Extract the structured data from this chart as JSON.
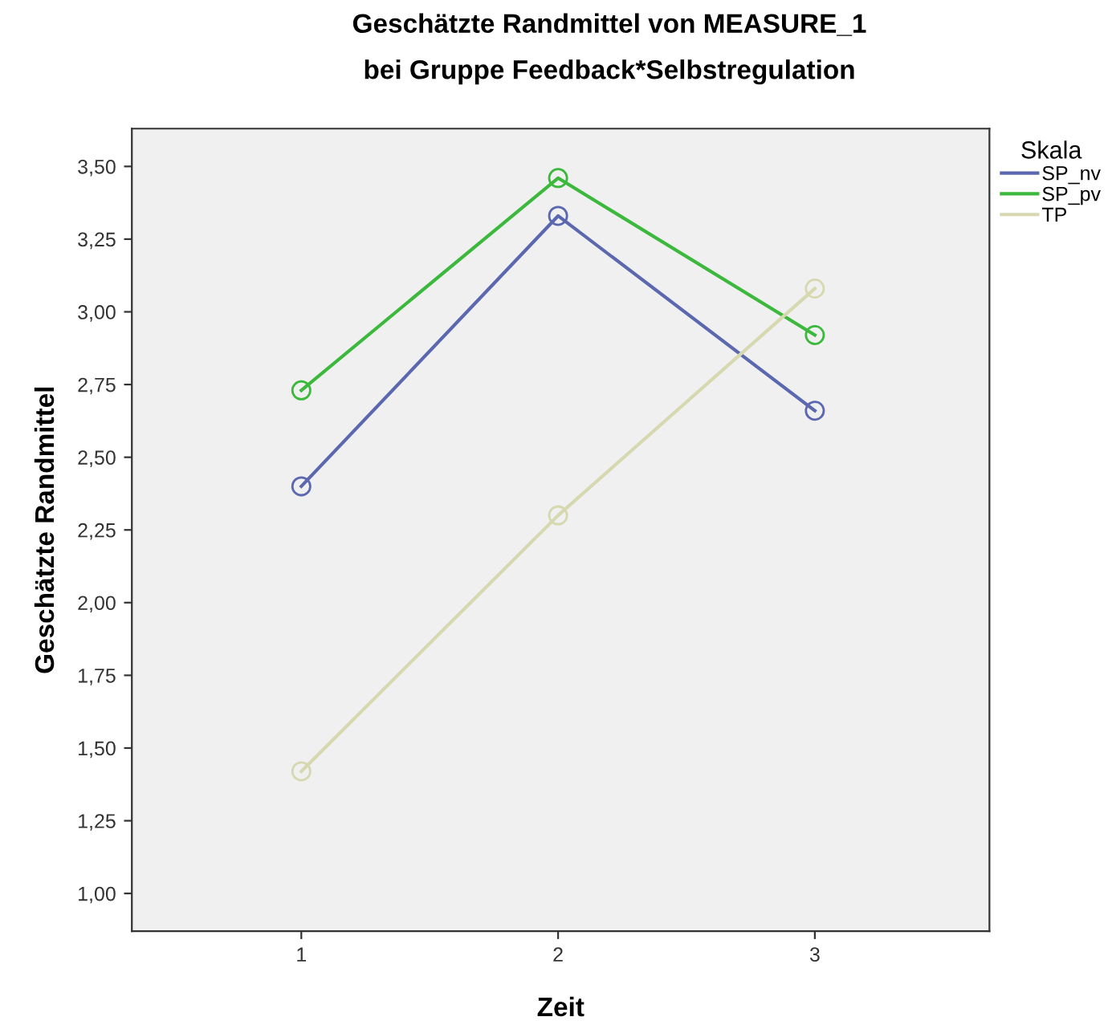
{
  "chart_data": {
    "type": "line",
    "title": "Geschätzte Randmittel von MEASURE_1",
    "subtitle": "bei Gruppe Feedback*Selbstregulation",
    "xlabel": "Zeit",
    "ylabel": "Geschätzte Randmittel",
    "legend_title": "Skala",
    "legend": "right",
    "marker": "circle",
    "line_style": "solid",
    "grid": false,
    "x": [
      1,
      2,
      3
    ],
    "series": [
      {
        "name": "SP_nv",
        "color": "#5b68b0",
        "values": [
          2.4,
          3.33,
          2.66
        ]
      },
      {
        "name": "SP_pv",
        "color": "#3cb83c",
        "values": [
          2.73,
          3.46,
          2.92
        ]
      },
      {
        "name": "TP",
        "color": "#d6d9b0",
        "values": [
          1.42,
          2.3,
          3.08
        ]
      }
    ],
    "xlim": [
      0.34,
      3.68
    ],
    "xticks": [
      1,
      2,
      3
    ],
    "ylim": [
      0.87,
      3.63
    ],
    "yticks": [
      {
        "value": 1.0,
        "label": "1,00"
      },
      {
        "value": 1.25,
        "label": "1,25"
      },
      {
        "value": 1.5,
        "label": "1,50"
      },
      {
        "value": 1.75,
        "label": "1,75"
      },
      {
        "value": 2.0,
        "label": "2,00"
      },
      {
        "value": 2.25,
        "label": "2,25"
      },
      {
        "value": 2.5,
        "label": "2,50"
      },
      {
        "value": 2.75,
        "label": "2,75"
      },
      {
        "value": 3.0,
        "label": "3,00"
      },
      {
        "value": 3.25,
        "label": "3,25"
      },
      {
        "value": 3.5,
        "label": "3,50"
      }
    ]
  }
}
